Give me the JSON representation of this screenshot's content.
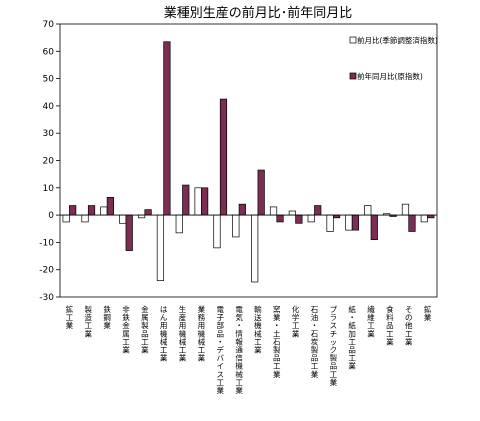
{
  "chart_data": {
    "type": "bar",
    "title": "業種別生産の前月比･前年同月比",
    "xlabel": "",
    "ylabel": "",
    "ylim": [
      -30,
      70
    ],
    "yticks": [
      -30,
      -20,
      -10,
      0,
      10,
      20,
      30,
      40,
      50,
      60,
      70
    ],
    "grid": false,
    "legend_position": "right",
    "categories": [
      "鉱工業",
      "製造工業",
      "鉄鋼業",
      "非鉄金属工業",
      "金属製品工業",
      "はん用機械工業",
      "生産用機械工業",
      "業務用機械工業",
      "電子部品・デバイス工業",
      "電気・情報通信機械工業",
      "輸送機械工業",
      "窯業・土石製品工業",
      "化学工業",
      "石油・石炭製品工業",
      "プラスチック製品工業",
      "紙・紙加工品工業",
      "繊維工業",
      "食料品工業",
      "その他工業",
      "鉱業"
    ],
    "series": [
      {
        "name": "前月比(季節調整済指数)",
        "color": "#ffffff",
        "stroke": "#000000",
        "values": [
          -2.5,
          -2.5,
          3.0,
          -3.0,
          -1.0,
          -24.0,
          -6.5,
          10.0,
          -12.0,
          -8.0,
          -24.5,
          3.0,
          1.5,
          -2.5,
          -6.0,
          -5.5,
          3.5,
          0.5,
          4.0,
          -2.5
        ]
      },
      {
        "name": "前年同月比(原指数)",
        "color": "#7b2d52",
        "stroke": "#000000",
        "values": [
          3.5,
          3.5,
          6.5,
          -13.0,
          2.0,
          63.5,
          11.0,
          10.0,
          42.5,
          4.0,
          16.5,
          -2.5,
          -3.0,
          3.5,
          -1.0,
          -5.5,
          -9.0,
          -0.5,
          -6.0,
          -1.0
        ]
      }
    ]
  }
}
